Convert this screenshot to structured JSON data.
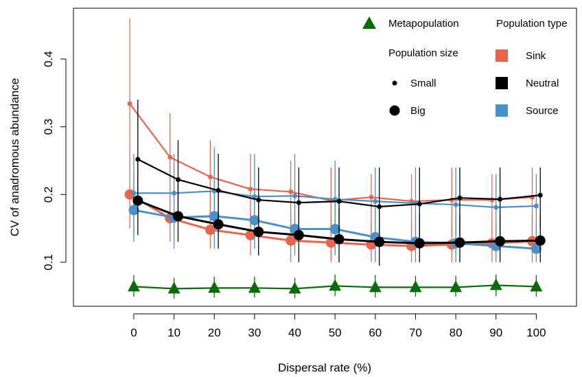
{
  "chart_data": {
    "type": "line",
    "xlabel": "Dispersal rate (%)",
    "ylabel": "CV of anadromous abundance",
    "x": [
      0,
      10,
      20,
      30,
      40,
      50,
      60,
      70,
      80,
      90,
      100
    ],
    "x_ticks": [
      "0",
      "10",
      "20",
      "30",
      "40",
      "50",
      "60",
      "70",
      "80",
      "90",
      "100"
    ],
    "y_ticks": [
      "0.1",
      "0.2",
      "0.3",
      "0.4"
    ],
    "y_tick_values": [
      0.1,
      0.2,
      0.3,
      0.4
    ],
    "xlim": [
      -15,
      110
    ],
    "ylim": [
      0.035,
      0.475
    ],
    "grid": false,
    "legend_placement": "top-right",
    "legend": {
      "metapopulation": "Metapopulation",
      "population_size_title": "Population size",
      "small": "Small",
      "big": "Big",
      "population_type_title": "Population type",
      "sink": "Sink",
      "neutral": "Neutral",
      "source": "Source"
    },
    "colors": {
      "Sink": "#e8654b",
      "Neutral": "#000000",
      "Source": "#4a90c9",
      "Metapopulation": "#0b6b0b"
    },
    "series": [
      {
        "type": "Sink",
        "size": "Small",
        "offset": -1,
        "values": [
          0.334,
          0.255,
          0.226,
          0.208,
          0.204,
          0.191,
          0.196,
          0.19,
          0.192,
          0.192,
          0.196
        ],
        "err_lo": [
          0.27,
          0.19,
          0.16,
          0.15,
          0.15,
          0.14,
          0.13,
          0.13,
          0.14,
          0.14,
          0.14
        ],
        "err_hi": [
          0.46,
          0.32,
          0.28,
          0.26,
          0.25,
          0.24,
          0.23,
          0.23,
          0.24,
          0.23,
          0.24
        ]
      },
      {
        "type": "Sink",
        "size": "Big",
        "offset": -1,
        "values": [
          0.2,
          0.165,
          0.148,
          0.14,
          0.132,
          0.129,
          0.126,
          0.124,
          0.126,
          0.128,
          0.131
        ],
        "err_lo": [
          0.15,
          0.13,
          0.12,
          0.11,
          0.1,
          0.1,
          0.1,
          0.1,
          0.1,
          0.1,
          0.1
        ],
        "err_hi": [
          0.27,
          0.21,
          0.19,
          0.18,
          0.17,
          0.17,
          0.16,
          0.16,
          0.16,
          0.16,
          0.17
        ]
      },
      {
        "type": "Source",
        "size": "Small",
        "offset": 0,
        "values": [
          0.202,
          0.202,
          0.205,
          0.197,
          0.198,
          0.193,
          0.19,
          0.187,
          0.185,
          0.181,
          0.183
        ],
        "err_lo": [
          0.14,
          0.14,
          0.15,
          0.14,
          0.14,
          0.14,
          0.14,
          0.14,
          0.14,
          0.14,
          0.14
        ],
        "err_hi": [
          0.26,
          0.26,
          0.27,
          0.26,
          0.26,
          0.25,
          0.24,
          0.24,
          0.24,
          0.23,
          0.23
        ]
      },
      {
        "type": "Source",
        "size": "Big",
        "offset": 0,
        "values": [
          0.177,
          0.166,
          0.168,
          0.162,
          0.149,
          0.149,
          0.137,
          0.13,
          0.128,
          0.124,
          0.12
        ],
        "err_lo": [
          0.13,
          0.12,
          0.12,
          0.12,
          0.11,
          0.11,
          0.1,
          0.1,
          0.1,
          0.1,
          0.1
        ],
        "err_hi": [
          0.23,
          0.21,
          0.22,
          0.21,
          0.19,
          0.19,
          0.18,
          0.17,
          0.17,
          0.16,
          0.16
        ]
      },
      {
        "type": "Neutral",
        "size": "Small",
        "offset": 1,
        "values": [
          0.252,
          0.222,
          0.206,
          0.192,
          0.188,
          0.19,
          0.182,
          0.186,
          0.195,
          0.193,
          0.199
        ],
        "err_lo": [
          0.19,
          0.17,
          0.16,
          0.14,
          0.14,
          0.14,
          0.13,
          0.13,
          0.14,
          0.14,
          0.15
        ],
        "err_hi": [
          0.34,
          0.28,
          0.26,
          0.24,
          0.24,
          0.24,
          0.24,
          0.24,
          0.24,
          0.24,
          0.24
        ]
      },
      {
        "type": "Neutral",
        "size": "Big",
        "offset": 1,
        "values": [
          0.191,
          0.168,
          0.156,
          0.145,
          0.14,
          0.134,
          0.13,
          0.128,
          0.129,
          0.131,
          0.132
        ],
        "err_lo": [
          0.14,
          0.13,
          0.12,
          0.11,
          0.1,
          0.1,
          0.095,
          0.1,
          0.1,
          0.1,
          0.1
        ],
        "err_hi": [
          0.25,
          0.22,
          0.21,
          0.2,
          0.19,
          0.18,
          0.18,
          0.17,
          0.17,
          0.17,
          0.17
        ]
      },
      {
        "type": "Metapopulation",
        "size": "",
        "offset": 0,
        "values": [
          0.064,
          0.061,
          0.062,
          0.062,
          0.061,
          0.065,
          0.063,
          0.063,
          0.063,
          0.066,
          0.064
        ],
        "err_lo": [
          0.049,
          0.046,
          0.048,
          0.048,
          0.047,
          0.05,
          0.048,
          0.049,
          0.049,
          0.05,
          0.049
        ],
        "err_hi": [
          0.081,
          0.077,
          0.079,
          0.079,
          0.077,
          0.082,
          0.081,
          0.08,
          0.08,
          0.082,
          0.081
        ]
      }
    ]
  }
}
